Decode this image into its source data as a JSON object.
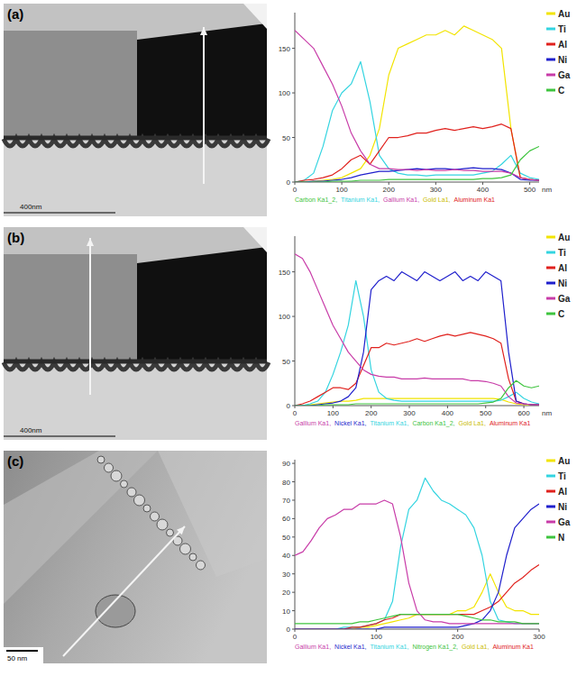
{
  "chart_data": [
    {
      "panel": "(a)",
      "type": "line",
      "scale_bar": "400nm",
      "x_label": "nm",
      "legend": "right",
      "grid": false,
      "x": [
        0,
        20,
        40,
        60,
        80,
        100,
        120,
        140,
        160,
        180,
        200,
        220,
        240,
        260,
        280,
        300,
        320,
        340,
        360,
        380,
        400,
        420,
        440,
        460,
        480,
        500,
        520
      ],
      "xlim": [
        0,
        520
      ],
      "xticks": [
        0,
        100,
        200,
        300,
        400,
        500
      ],
      "ylim": [
        0,
        190
      ],
      "yticks": [
        0,
        50,
        100,
        150
      ],
      "series": [
        {
          "name": "Au",
          "color": "#f2e400",
          "values": [
            0,
            0,
            1,
            2,
            3,
            5,
            10,
            15,
            30,
            60,
            120,
            150,
            155,
            160,
            165,
            165,
            170,
            165,
            175,
            170,
            165,
            160,
            150,
            60,
            5,
            3,
            2
          ]
        },
        {
          "name": "Ti",
          "color": "#33d4e0",
          "values": [
            0,
            2,
            10,
            40,
            80,
            100,
            110,
            135,
            90,
            30,
            15,
            10,
            8,
            8,
            7,
            8,
            8,
            8,
            8,
            8,
            10,
            12,
            20,
            30,
            10,
            5,
            3
          ]
        },
        {
          "name": "Al",
          "color": "#e0211d",
          "values": [
            0,
            2,
            3,
            5,
            8,
            15,
            25,
            30,
            20,
            35,
            50,
            50,
            52,
            55,
            55,
            58,
            60,
            58,
            60,
            62,
            60,
            62,
            65,
            60,
            5,
            3,
            2
          ]
        },
        {
          "name": "Ni",
          "color": "#1f1fcc",
          "values": [
            0,
            0,
            1,
            1,
            2,
            3,
            5,
            8,
            10,
            12,
            12,
            13,
            14,
            15,
            14,
            15,
            15,
            14,
            15,
            16,
            15,
            15,
            14,
            10,
            3,
            2,
            2
          ]
        },
        {
          "name": "Ga",
          "color": "#c83ca8",
          "values": [
            170,
            160,
            150,
            130,
            110,
            85,
            55,
            35,
            20,
            15,
            15,
            14,
            14,
            13,
            14,
            13,
            13,
            14,
            13,
            13,
            12,
            12,
            12,
            10,
            5,
            3,
            2
          ]
        },
        {
          "name": "C",
          "color": "#3ec43e",
          "values": [
            0,
            0,
            0,
            0,
            1,
            1,
            1,
            2,
            2,
            2,
            3,
            3,
            3,
            3,
            3,
            3,
            3,
            3,
            3,
            3,
            4,
            4,
            5,
            8,
            25,
            35,
            40
          ]
        }
      ],
      "annotations": [
        {
          "text": "Carbon Ka1_2,",
          "color": "#3ec43e"
        },
        {
          "text": "Titanium Ka1,",
          "color": "#33d4e0"
        },
        {
          "text": "Gallium Ka1,",
          "color": "#c83ca8"
        },
        {
          "text": "Gold La1,",
          "color": "#c9bb00"
        },
        {
          "text": "Aluminum Ka1",
          "color": "#e0211d"
        }
      ]
    },
    {
      "panel": "(b)",
      "type": "line",
      "scale_bar": "400nm",
      "x_label": "nm",
      "legend": "right",
      "grid": false,
      "x": [
        0,
        20,
        40,
        60,
        80,
        100,
        120,
        140,
        160,
        180,
        200,
        220,
        240,
        260,
        280,
        300,
        320,
        340,
        360,
        380,
        400,
        420,
        440,
        460,
        480,
        500,
        520,
        540,
        560,
        580,
        600,
        620,
        640
      ],
      "xlim": [
        0,
        640
      ],
      "xticks": [
        0,
        100,
        200,
        300,
        400,
        500,
        600
      ],
      "ylim": [
        0,
        190
      ],
      "yticks": [
        0,
        50,
        100,
        150
      ],
      "series": [
        {
          "name": "Au",
          "color": "#f2e400",
          "values": [
            0,
            0,
            1,
            2,
            3,
            4,
            5,
            5,
            6,
            8,
            8,
            8,
            8,
            8,
            8,
            8,
            8,
            8,
            8,
            8,
            8,
            8,
            8,
            8,
            8,
            8,
            8,
            7,
            4,
            2,
            1,
            1,
            1
          ]
        },
        {
          "name": "Ti",
          "color": "#33d4e0",
          "values": [
            0,
            0,
            2,
            5,
            15,
            35,
            60,
            90,
            140,
            100,
            40,
            15,
            8,
            6,
            5,
            5,
            5,
            5,
            5,
            5,
            5,
            5,
            5,
            5,
            5,
            5,
            5,
            6,
            10,
            15,
            8,
            4,
            2
          ]
        },
        {
          "name": "Al",
          "color": "#e0211d",
          "values": [
            0,
            2,
            5,
            10,
            15,
            20,
            20,
            18,
            25,
            45,
            65,
            65,
            70,
            68,
            70,
            72,
            75,
            72,
            75,
            78,
            80,
            78,
            80,
            82,
            80,
            78,
            75,
            70,
            30,
            5,
            2,
            1,
            1
          ]
        },
        {
          "name": "Ni",
          "color": "#1f1fcc",
          "values": [
            0,
            0,
            0,
            1,
            2,
            3,
            5,
            10,
            20,
            60,
            130,
            140,
            145,
            140,
            150,
            145,
            140,
            150,
            145,
            140,
            145,
            150,
            140,
            145,
            140,
            150,
            145,
            140,
            60,
            5,
            2,
            1,
            1
          ]
        },
        {
          "name": "Ga",
          "color": "#c83ca8",
          "values": [
            170,
            165,
            150,
            130,
            110,
            90,
            75,
            60,
            50,
            40,
            35,
            33,
            32,
            32,
            30,
            30,
            30,
            31,
            30,
            30,
            30,
            30,
            30,
            28,
            28,
            27,
            25,
            22,
            10,
            3,
            2,
            1,
            1
          ]
        },
        {
          "name": "C",
          "color": "#3ec43e",
          "values": [
            0,
            0,
            0,
            0,
            1,
            1,
            1,
            1,
            2,
            2,
            2,
            2,
            2,
            2,
            2,
            2,
            2,
            2,
            2,
            2,
            2,
            2,
            2,
            2,
            2,
            3,
            4,
            8,
            20,
            28,
            22,
            20,
            22
          ]
        }
      ],
      "annotations": [
        {
          "text": "Gallium Ka1,",
          "color": "#c83ca8"
        },
        {
          "text": "Nickel Ka1,",
          "color": "#1f1fcc"
        },
        {
          "text": "Titanium Ka1,",
          "color": "#33d4e0"
        },
        {
          "text": "Carbon Ka1_2,",
          "color": "#3ec43e"
        },
        {
          "text": "Gold La1,",
          "color": "#c9bb00"
        },
        {
          "text": "Aluminum Ka1",
          "color": "#e0211d"
        }
      ]
    },
    {
      "panel": "(c)",
      "type": "line",
      "scale_bar": "50 nm",
      "legend": "right",
      "grid": false,
      "x": [
        0,
        10,
        20,
        30,
        40,
        50,
        60,
        70,
        80,
        90,
        100,
        110,
        120,
        130,
        140,
        150,
        160,
        170,
        180,
        190,
        200,
        210,
        220,
        230,
        240,
        250,
        260,
        270,
        280,
        290,
        300
      ],
      "xlim": [
        0,
        300
      ],
      "xticks": [
        0,
        100,
        200,
        300
      ],
      "ylim": [
        0,
        92
      ],
      "yticks": [
        0,
        10,
        20,
        30,
        40,
        50,
        60,
        70,
        80,
        90
      ],
      "series": [
        {
          "name": "Au",
          "color": "#f2e400",
          "values": [
            0,
            0,
            0,
            0,
            0,
            0,
            0,
            0,
            1,
            1,
            2,
            3,
            4,
            5,
            6,
            8,
            8,
            8,
            8,
            8,
            10,
            10,
            12,
            20,
            30,
            20,
            12,
            10,
            10,
            8,
            8
          ]
        },
        {
          "name": "Ti",
          "color": "#33d4e0",
          "values": [
            0,
            0,
            0,
            0,
            0,
            0,
            1,
            1,
            1,
            2,
            3,
            5,
            15,
            45,
            65,
            70,
            82,
            75,
            70,
            68,
            65,
            62,
            55,
            40,
            15,
            5,
            4,
            3,
            3,
            3,
            3
          ]
        },
        {
          "name": "Al",
          "color": "#e0211d",
          "values": [
            0,
            0,
            0,
            0,
            0,
            0,
            0,
            1,
            1,
            2,
            3,
            5,
            6,
            8,
            8,
            8,
            8,
            8,
            8,
            8,
            8,
            8,
            8,
            10,
            12,
            15,
            20,
            25,
            28,
            32,
            35
          ]
        },
        {
          "name": "Ni",
          "color": "#1f1fcc",
          "values": [
            0,
            0,
            0,
            0,
            0,
            0,
            0,
            0,
            0,
            0,
            0,
            1,
            1,
            1,
            1,
            1,
            1,
            1,
            1,
            1,
            1,
            2,
            3,
            5,
            10,
            20,
            40,
            55,
            60,
            65,
            68
          ]
        },
        {
          "name": "Ga",
          "color": "#c83ca8",
          "values": [
            40,
            42,
            48,
            55,
            60,
            62,
            65,
            65,
            68,
            68,
            68,
            70,
            68,
            50,
            25,
            10,
            5,
            4,
            4,
            3,
            3,
            3,
            3,
            3,
            3,
            3,
            3,
            3,
            3,
            3,
            3
          ]
        },
        {
          "name": "N",
          "color": "#3ec43e",
          "values": [
            3,
            3,
            3,
            3,
            3,
            3,
            3,
            3,
            4,
            4,
            5,
            6,
            7,
            8,
            8,
            8,
            8,
            8,
            8,
            8,
            8,
            7,
            6,
            5,
            5,
            4,
            4,
            4,
            3,
            3,
            3
          ]
        }
      ],
      "annotations": [
        {
          "text": "Gallium Ka1,",
          "color": "#c83ca8"
        },
        {
          "text": "Nickel Ka1,",
          "color": "#1f1fcc"
        },
        {
          "text": "Titanium Ka1,",
          "color": "#33d4e0"
        },
        {
          "text": "Nitrogen Ka1_2,",
          "color": "#3ec43e"
        },
        {
          "text": "Gold La1,",
          "color": "#c9bb00"
        },
        {
          "text": "Aluminum Ka1",
          "color": "#e0211d"
        }
      ]
    }
  ]
}
